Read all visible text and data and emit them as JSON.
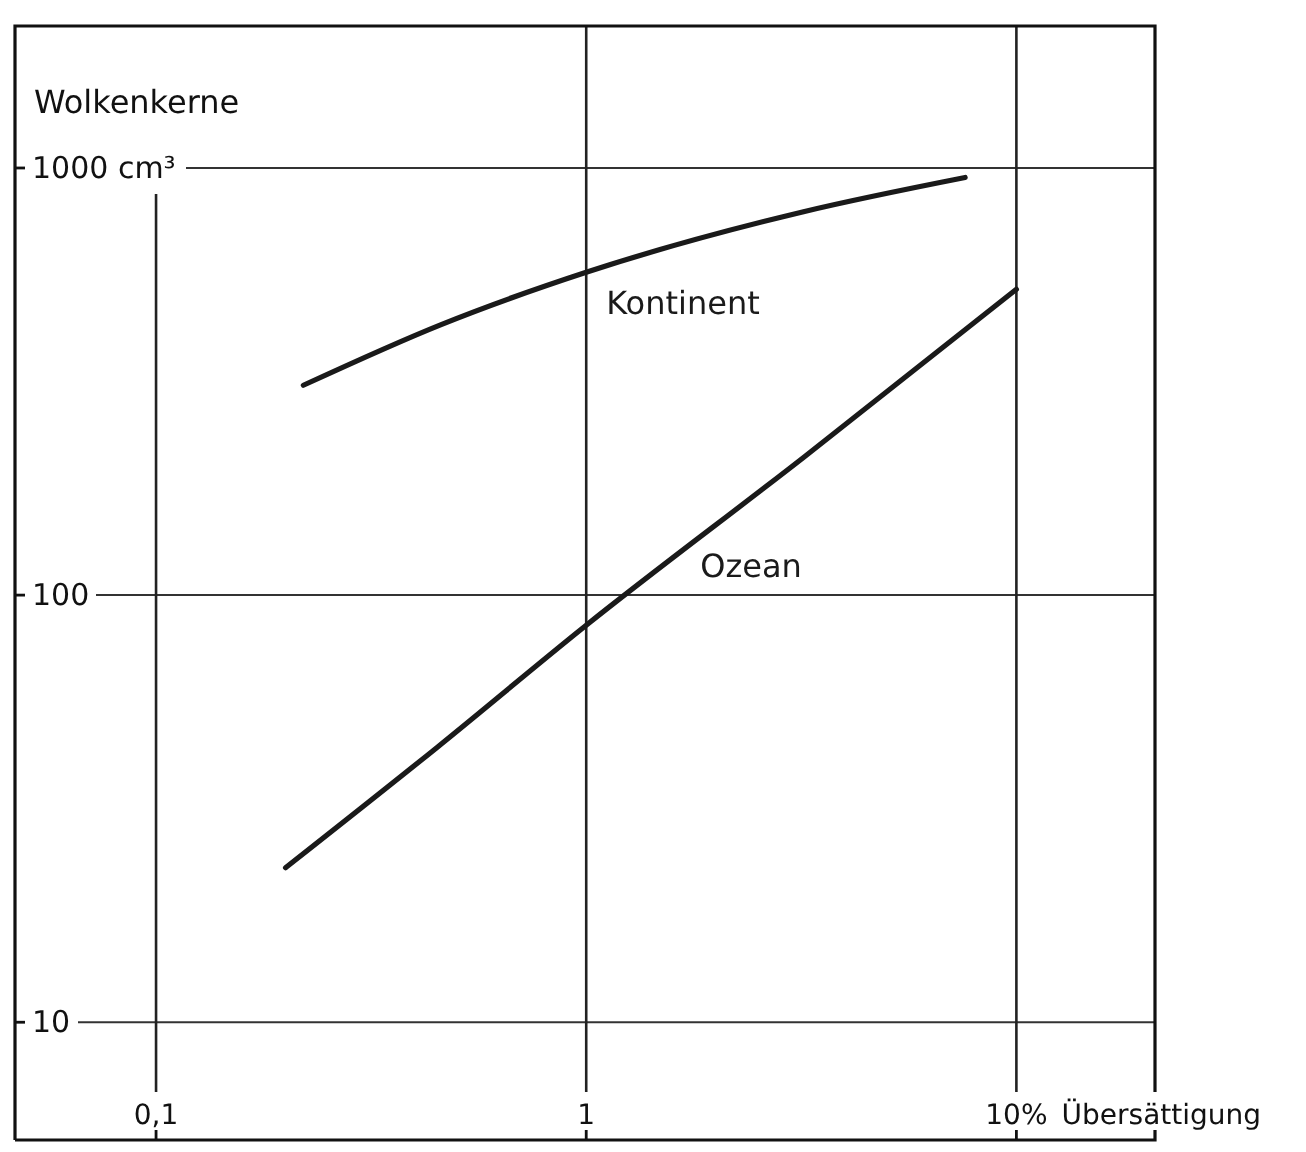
{
  "chart_data": {
    "type": "line",
    "ylabel": "Wolkenkerne",
    "xlabel": "Übersättigung",
    "series": [
      {
        "name": "Kontinent",
        "color": "#1a1a1a",
        "x": [
          0.22,
          0.46,
          1,
          3.2,
          7.6
        ],
        "values": [
          310,
          430,
          570,
          790,
          950
        ]
      },
      {
        "name": "Ozean",
        "color": "#1a1a1a",
        "x": [
          0.2,
          0.45,
          1,
          3.2,
          10
        ],
        "values": [
          23,
          44,
          85,
          210,
          520
        ]
      }
    ],
    "xlim": [
      0.047,
      21
    ],
    "ylim": [
      5.3,
      2150
    ],
    "xticks": [
      {
        "value": 0.1,
        "label": "0,1"
      },
      1,
      {
        "value": 10,
        "label": "10%"
      }
    ],
    "yticks": [
      10,
      100,
      {
        "value": 1000,
        "label": "1000 cm³"
      }
    ],
    "log": "xy",
    "grid": true,
    "line_style": "solid"
  }
}
